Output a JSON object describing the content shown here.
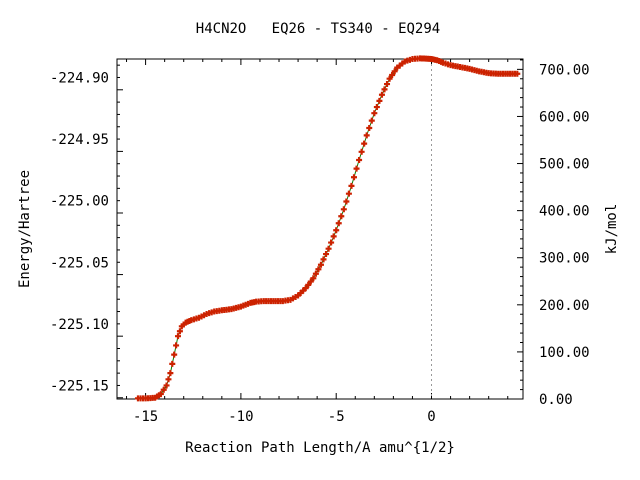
{
  "chart_data": {
    "type": "line",
    "title": "H4CN2O   EQ26 - TS340 - EQ294",
    "xlabel": "Reaction Path Length/A amu^{1/2}",
    "ylabel": "Energy/Hartree",
    "y2label": "kJ/mol",
    "xlim": [
      -16.5,
      4.8
    ],
    "ylim": [
      -225.161,
      -224.885
    ],
    "y2lim": [
      0.0,
      722.0
    ],
    "x_ticks": [
      -15,
      -10,
      -5,
      0
    ],
    "x_tick_labels": [
      "-15",
      "-10",
      "-5",
      "0"
    ],
    "y_ticks": [
      -225.15,
      -225.1,
      -225.05,
      -225.0,
      -224.95,
      -224.9
    ],
    "y_tick_labels": [
      "-225.15",
      "-225.10",
      "-225.05",
      "-225.00",
      "-224.95",
      "-224.90"
    ],
    "y2_ticks": [
      0,
      100,
      200,
      300,
      400,
      500,
      600,
      700
    ],
    "y2_tick_labels": [
      "0.00",
      "100.00",
      "200.00",
      "300.00",
      "400.00",
      "500.00",
      "600.00",
      "700.00"
    ],
    "reference_line_x": 0,
    "line_color": "#008000",
    "marker_color": "#cc2200",
    "series": [
      {
        "x": [
          -15.4,
          -15.0,
          -14.5,
          -14.2,
          -13.9,
          -13.7,
          -13.5,
          -13.3,
          -13.1,
          -12.9,
          -12.6,
          -12.2,
          -11.8,
          -11.4,
          -11.0,
          -10.5,
          -10.0,
          -9.5,
          -9.2,
          -8.8,
          -8.3,
          -7.8,
          -7.4,
          -7.0,
          -6.6,
          -6.2,
          -5.8,
          -5.4,
          -5.0,
          -4.6,
          -4.2,
          -3.8,
          -3.4,
          -3.0,
          -2.6,
          -2.2,
          -1.8,
          -1.4,
          -1.0,
          -0.6,
          -0.3,
          0.0,
          0.3,
          0.6,
          1.0,
          1.5,
          2.0,
          2.5,
          3.0,
          3.5,
          4.0,
          4.5
        ],
        "y": [
          -225.1605,
          -225.1605,
          -225.16,
          -225.157,
          -225.15,
          -225.14,
          -225.125,
          -225.11,
          -225.102,
          -225.099,
          -225.097,
          -225.095,
          -225.092,
          -225.09,
          -225.089,
          -225.088,
          -225.086,
          -225.083,
          -225.082,
          -225.0815,
          -225.0815,
          -225.0815,
          -225.0805,
          -225.077,
          -225.071,
          -225.063,
          -225.052,
          -225.039,
          -225.024,
          -225.007,
          -224.988,
          -224.967,
          -224.947,
          -224.929,
          -224.914,
          -224.901,
          -224.892,
          -224.887,
          -224.885,
          -224.8845,
          -224.8847,
          -224.885,
          -224.886,
          -224.888,
          -224.89,
          -224.8915,
          -224.893,
          -224.895,
          -224.8965,
          -224.897,
          -224.897,
          -224.897
        ]
      }
    ]
  }
}
